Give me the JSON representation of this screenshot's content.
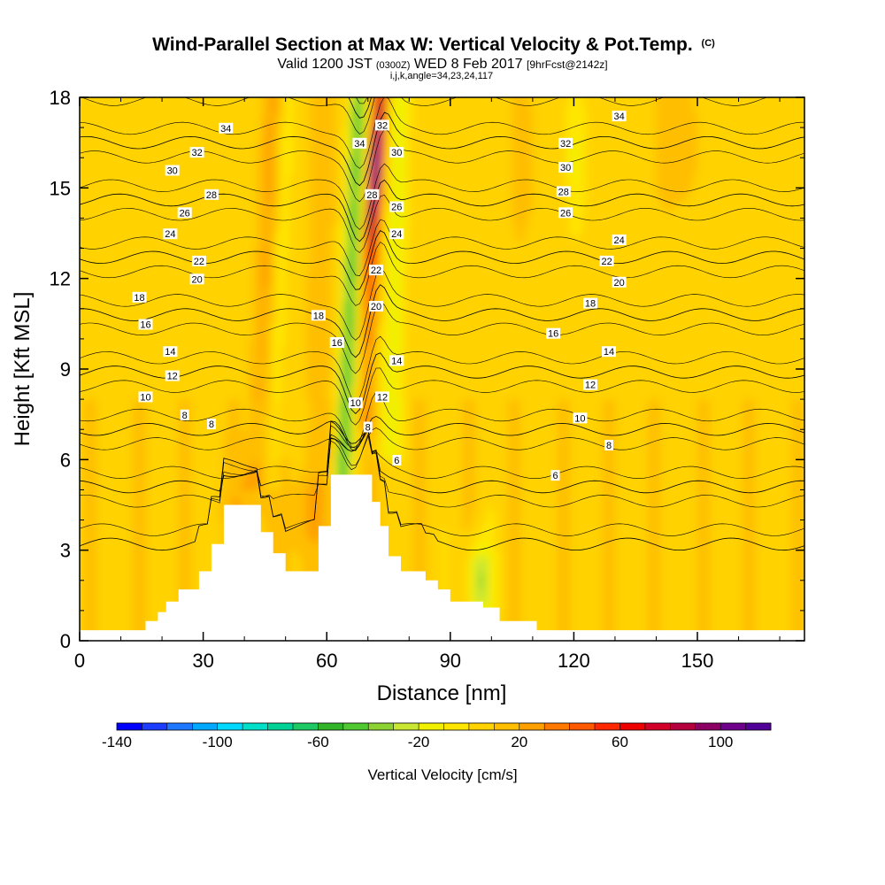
{
  "chart_data": {
    "type": "heatmap",
    "title": "Wind-Parallel Section at Max W: Vertical Velocity & Pot.Temp.",
    "title_mark": "(C)",
    "subtitle_parts": [
      "Valid 1200 JST ",
      "(0300Z)",
      " WED 8 Feb 2017 ",
      "[9hrFcst@2142z]"
    ],
    "subtitle2": "i,j,k,angle=34,23,24,117",
    "xlabel": "Distance [nm]",
    "ylabel": "Height [Kft MSL]",
    "xlim": [
      0,
      176
    ],
    "ylim": [
      0,
      18
    ],
    "x_ticks": [
      0,
      30,
      60,
      90,
      120,
      150
    ],
    "y_ticks": [
      0,
      3,
      6,
      9,
      12,
      15,
      18
    ],
    "colorbar": {
      "label": "Vertical Velocity [cm/s]",
      "range": [
        -140,
        120
      ],
      "tick_values": [
        -140,
        -100,
        -60,
        -20,
        20,
        60,
        100
      ],
      "colors": [
        "#0000ff",
        "#1c3cff",
        "#1e78ff",
        "#00a8ff",
        "#00d8ff",
        "#00e0c8",
        "#00d296",
        "#1ec864",
        "#32b428",
        "#50c832",
        "#8cd232",
        "#c8e632",
        "#f0f000",
        "#ffe600",
        "#ffd200",
        "#ffbe00",
        "#ffa000",
        "#ff7800",
        "#ff5a00",
        "#ff2800",
        "#ee0000",
        "#d20028",
        "#b4003c",
        "#8c0064",
        "#6e008c",
        "#500096"
      ]
    },
    "terrain_kft": [
      [
        0,
        0.35
      ],
      [
        16,
        0.35
      ],
      [
        16,
        0.65
      ],
      [
        19,
        0.65
      ],
      [
        19,
        0.95
      ],
      [
        21,
        0.95
      ],
      [
        21,
        1.3
      ],
      [
        24,
        1.3
      ],
      [
        24,
        1.7
      ],
      [
        29,
        1.7
      ],
      [
        29,
        2.3
      ],
      [
        32,
        2.3
      ],
      [
        32,
        3.2
      ],
      [
        35,
        3.2
      ],
      [
        35,
        4.5
      ],
      [
        44,
        4.5
      ],
      [
        44,
        3.6
      ],
      [
        47,
        3.6
      ],
      [
        47,
        2.9
      ],
      [
        50,
        2.9
      ],
      [
        50,
        2.3
      ],
      [
        58,
        2.3
      ],
      [
        58,
        3.8
      ],
      [
        61,
        3.8
      ],
      [
        61,
        5.5
      ],
      [
        71,
        5.5
      ],
      [
        71,
        4.6
      ],
      [
        73,
        4.6
      ],
      [
        73,
        3.8
      ],
      [
        75,
        3.8
      ],
      [
        75,
        2.8
      ],
      [
        78,
        2.8
      ],
      [
        78,
        2.3
      ],
      [
        84,
        2.3
      ],
      [
        84,
        2.0
      ],
      [
        87,
        2.0
      ],
      [
        87,
        1.7
      ],
      [
        90,
        1.7
      ],
      [
        90,
        1.3
      ],
      [
        98,
        1.3
      ],
      [
        98,
        1.1
      ],
      [
        102,
        1.1
      ],
      [
        102,
        0.65
      ],
      [
        111,
        0.65
      ],
      [
        111,
        0.35
      ],
      [
        176,
        0.35
      ]
    ],
    "theta_levels": [
      6,
      8,
      10,
      12,
      14,
      16,
      18,
      20,
      22,
      24,
      26,
      28,
      30,
      32,
      34
    ],
    "theta_contour_labels": [
      {
        "v": "34",
        "x": 35.5,
        "y": 16.98
      },
      {
        "v": "32",
        "x": 28.5,
        "y": 16.18
      },
      {
        "v": "30",
        "x": 22.5,
        "y": 15.58
      },
      {
        "v": "28",
        "x": 32,
        "y": 14.78
      },
      {
        "v": "26",
        "x": 25.5,
        "y": 14.18
      },
      {
        "v": "24",
        "x": 22,
        "y": 13.48
      },
      {
        "v": "22",
        "x": 29,
        "y": 12.58
      },
      {
        "v": "20",
        "x": 28.5,
        "y": 11.98
      },
      {
        "v": "18",
        "x": 14.5,
        "y": 11.38
      },
      {
        "v": "16",
        "x": 16,
        "y": 10.48
      },
      {
        "v": "14",
        "x": 22,
        "y": 9.58
      },
      {
        "v": "12",
        "x": 22.5,
        "y": 8.78
      },
      {
        "v": "10",
        "x": 16,
        "y": 8.08
      },
      {
        "v": "8",
        "x": 25.5,
        "y": 7.48
      },
      {
        "v": "8",
        "x": 32,
        "y": 7.18
      },
      {
        "v": "34",
        "x": 68,
        "y": 16.48
      },
      {
        "v": "32",
        "x": 73.5,
        "y": 17.08
      },
      {
        "v": "30",
        "x": 77,
        "y": 16.18
      },
      {
        "v": "28",
        "x": 71,
        "y": 14.78
      },
      {
        "v": "26",
        "x": 77,
        "y": 14.38
      },
      {
        "v": "24",
        "x": 77,
        "y": 13.48
      },
      {
        "v": "22",
        "x": 72,
        "y": 12.28
      },
      {
        "v": "20",
        "x": 72,
        "y": 11.08
      },
      {
        "v": "18",
        "x": 58,
        "y": 10.78
      },
      {
        "v": "16",
        "x": 62.5,
        "y": 9.88
      },
      {
        "v": "14",
        "x": 77,
        "y": 9.28
      },
      {
        "v": "12",
        "x": 73.5,
        "y": 8.08
      },
      {
        "v": "10",
        "x": 67,
        "y": 7.88
      },
      {
        "v": "8",
        "x": 70,
        "y": 7.08
      },
      {
        "v": "6",
        "x": 77,
        "y": 5.98
      },
      {
        "v": "34",
        "x": 131,
        "y": 17.38
      },
      {
        "v": "32",
        "x": 118,
        "y": 16.48
      },
      {
        "v": "30",
        "x": 118,
        "y": 15.68
      },
      {
        "v": "28",
        "x": 117.5,
        "y": 14.88
      },
      {
        "v": "26",
        "x": 118,
        "y": 14.18
      },
      {
        "v": "24",
        "x": 131,
        "y": 13.28
      },
      {
        "v": "22",
        "x": 128,
        "y": 12.58
      },
      {
        "v": "20",
        "x": 131,
        "y": 11.88
      },
      {
        "v": "18",
        "x": 124,
        "y": 11.18
      },
      {
        "v": "16",
        "x": 115,
        "y": 10.18
      },
      {
        "v": "14",
        "x": 128.5,
        "y": 9.58
      },
      {
        "v": "12",
        "x": 124,
        "y": 8.48
      },
      {
        "v": "10",
        "x": 121.5,
        "y": 7.38
      },
      {
        "v": "8",
        "x": 128.5,
        "y": 6.48
      },
      {
        "v": "6",
        "x": 115.5,
        "y": 5.48
      }
    ]
  }
}
